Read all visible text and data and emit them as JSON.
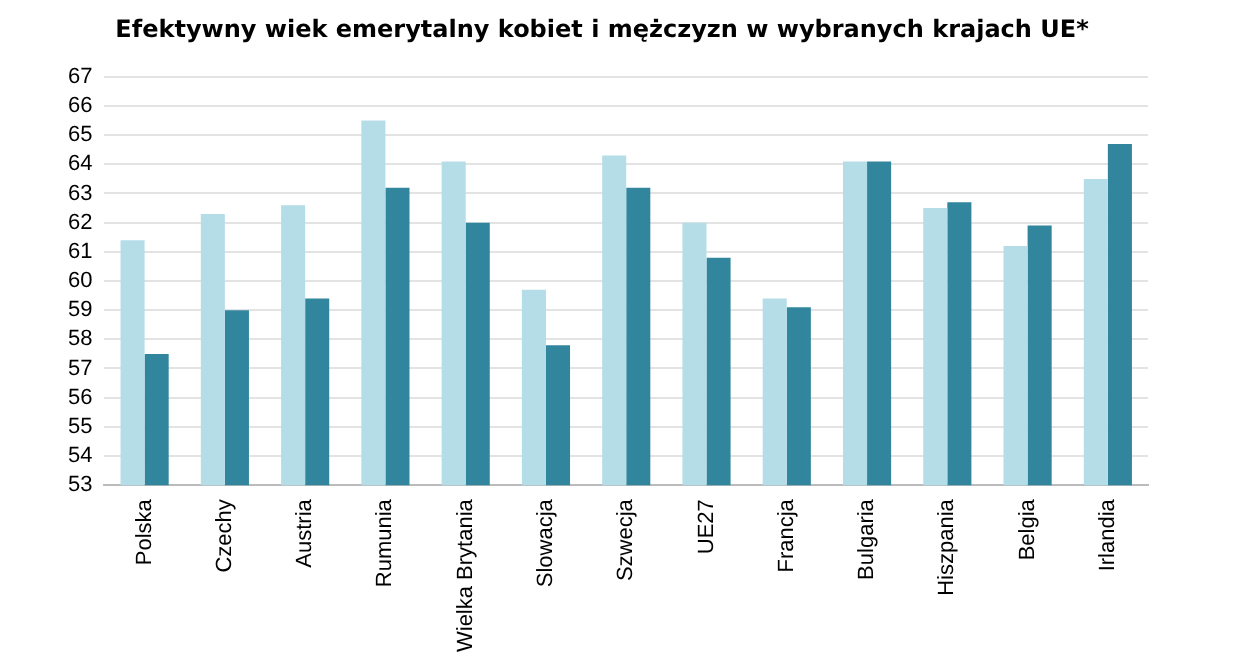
{
  "chart_data": {
    "type": "bar",
    "title": "Efektywny wiek emerytalny kobiet i mężczyzn w wybranych krajach UE*",
    "categories": [
      "Polska",
      "Czechy",
      "Austria",
      "Rumunia",
      "Wielka Brytania",
      "Slowacja",
      "Szwecja",
      "UE27",
      "Francja",
      "Bulgaria",
      "Hiszpania",
      "Belgia",
      "Irlandia"
    ],
    "series": [
      {
        "color": "#b5dde8",
        "values": [
          61.4,
          62.3,
          62.6,
          65.5,
          64.1,
          59.7,
          64.3,
          62.0,
          59.4,
          64.1,
          62.5,
          61.2,
          63.5
        ]
      },
      {
        "color": "#31869e",
        "values": [
          57.5,
          59.0,
          59.4,
          63.2,
          62.0,
          57.8,
          63.2,
          60.8,
          59.1,
          64.1,
          62.7,
          61.9,
          64.7
        ]
      }
    ],
    "ylim": [
      53,
      67
    ],
    "yticks": [
      53,
      54,
      55,
      56,
      57,
      58,
      59,
      60,
      61,
      62,
      63,
      64,
      65,
      66,
      67
    ],
    "grid": "y",
    "legend": false
  }
}
